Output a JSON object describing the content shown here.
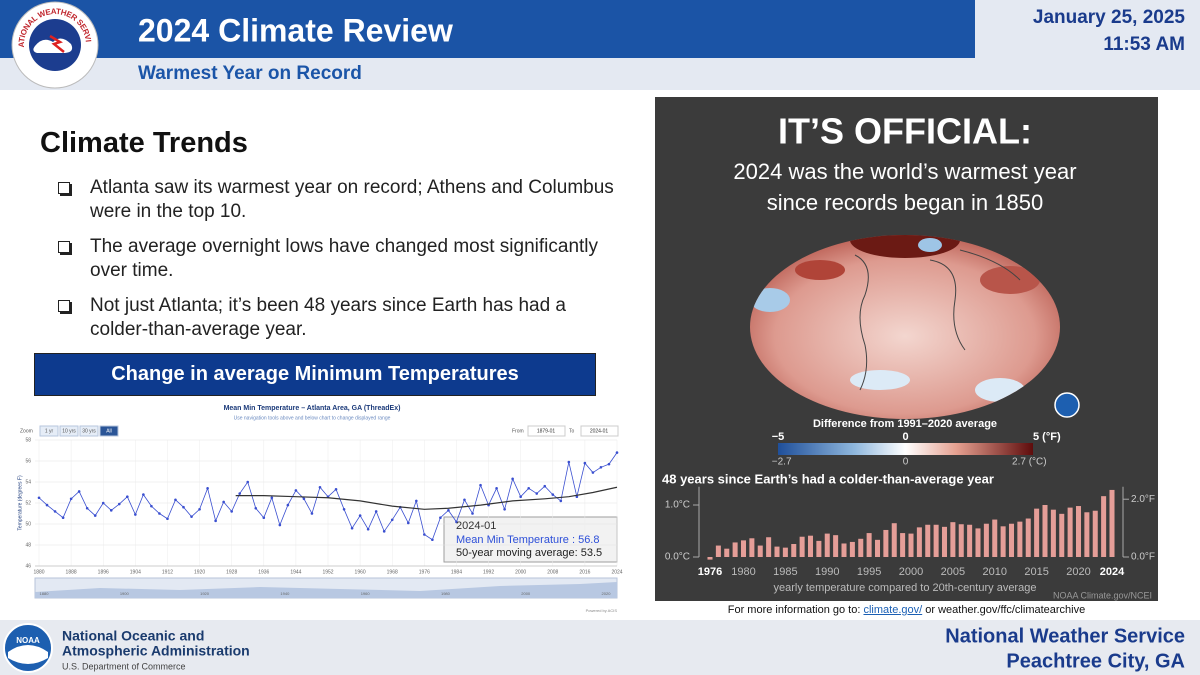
{
  "header": {
    "title": "2024 Climate Review",
    "subtitle": "Warmest Year on Record",
    "date": "January 25, 2025",
    "time": "11:53 AM",
    "logo_text": "NATIONAL WEATHER SERVICE"
  },
  "section": {
    "heading": "Climate Trends",
    "bullets": [
      "Atlanta saw its warmest year on record; Athens and Columbus were in the top 10.",
      "The average overnight lows have changed most significantly over time.",
      "Not just Atlanta; it’s been 48 years since Earth has had a colder-than-average year."
    ],
    "box_label": "Change in average Minimum Temperatures"
  },
  "chart_data": [
    {
      "type": "line",
      "title": "Mean Min Temperature – Atlanta Area, GA (ThreadEx)",
      "subtitle": "Use navigation tools above and below chart to change displayed range",
      "zoom_label": "Zoom",
      "zoom_buttons": [
        "1 yr",
        "10 yrs",
        "30 yrs",
        "All"
      ],
      "from_label": "From",
      "from": "1879-01",
      "to_label": "To",
      "to": "2024-01",
      "y_label": "Temperature (degrees F)",
      "xlim": [
        1879,
        2024
      ],
      "xticks": [
        1880,
        1888,
        1896,
        1904,
        1912,
        1920,
        1928,
        1936,
        1944,
        1952,
        1960,
        1968,
        1976,
        1984,
        1992,
        2000,
        2008,
        2016,
        2024
      ],
      "ylim": [
        46,
        58
      ],
      "yticks": [
        46,
        48,
        50,
        52,
        54,
        56,
        58
      ],
      "grid": true,
      "series": [
        {
          "color": "#3a4fd0",
          "x": [
            1880,
            1882,
            1884,
            1886,
            1888,
            1890,
            1892,
            1894,
            1896,
            1898,
            1900,
            1902,
            1904,
            1906,
            1908,
            1910,
            1912,
            1914,
            1916,
            1918,
            1920,
            1922,
            1924,
            1926,
            1928,
            1930,
            1932,
            1934,
            1936,
            1938,
            1940,
            1942,
            1944,
            1946,
            1948,
            1950,
            1952,
            1954,
            1956,
            1958,
            1960,
            1962,
            1964,
            1966,
            1968,
            1970,
            1972,
            1974,
            1976,
            1978,
            1980,
            1982,
            1984,
            1986,
            1988,
            1990,
            1992,
            1994,
            1996,
            1998,
            2000,
            2002,
            2004,
            2006,
            2008,
            2010,
            2012,
            2014,
            2016,
            2018,
            2020,
            2022,
            2024
          ],
          "values": [
            52.5,
            51.8,
            51.2,
            50.6,
            52.4,
            53.1,
            51.5,
            50.8,
            52.0,
            51.3,
            51.9,
            52.6,
            50.9,
            52.8,
            51.7,
            51.0,
            50.5,
            52.3,
            51.6,
            50.7,
            51.4,
            53.4,
            50.3,
            52.1,
            51.2,
            52.9,
            54.0,
            51.5,
            50.6,
            52.5,
            49.9,
            51.8,
            53.2,
            52.4,
            51.0,
            53.5,
            52.6,
            53.3,
            51.4,
            49.6,
            50.8,
            49.5,
            51.2,
            49.3,
            50.4,
            51.6,
            50.1,
            52.2,
            49.0,
            48.5,
            50.6,
            51.3,
            50.2,
            52.3,
            51.0,
            53.7,
            51.8,
            53.4,
            51.4,
            54.3,
            52.6,
            53.4,
            52.9,
            53.6,
            52.8,
            52.2,
            55.9,
            52.6,
            55.8,
            54.9,
            55.4,
            55.7,
            56.8
          ]
        },
        {
          "color": "#333333",
          "x": [
            1929,
            1936,
            1944,
            1952,
            1960,
            1968,
            1976,
            1982,
            1990,
            1998,
            2006,
            2012,
            2018,
            2024
          ],
          "values": [
            52.7,
            52.7,
            52.6,
            52.5,
            52.2,
            51.7,
            51.4,
            51.5,
            51.8,
            52.2,
            52.4,
            52.6,
            53.0,
            53.5
          ]
        }
      ],
      "tooltip": {
        "date": "2024-01",
        "lines": [
          "Mean Min Temperature : 56.8",
          "50-year moving average: 53.5"
        ]
      },
      "navigator_labels": [
        "1880",
        "1900",
        "1920",
        "1940",
        "1960",
        "1980",
        "2000",
        "2020"
      ],
      "credit": "Powered by ACIS"
    },
    {
      "type": "bar",
      "headline": "IT’S OFFICIAL:",
      "subhead": [
        "2024 was the world’s warmest year",
        "since records began in 1850"
      ],
      "colorbar": {
        "title": "Difference from 1991–2020 average",
        "flim": [
          -5,
          5
        ],
        "fticks": [
          {
            "value": -5,
            "label": "−5"
          },
          0,
          {
            "value": 5,
            "label": "5 (°F)"
          }
        ],
        "clim": [
          -2.78,
          2.78
        ],
        "cticks": [
          {
            "value": -2.7,
            "label": "−2.7"
          },
          0,
          {
            "value": 2.7,
            "label": "2.7 (°C)"
          }
        ]
      },
      "title": "48 years since Earth’s had a colder-than-average year",
      "x_label": "yearly temperature compared to 20th-century average",
      "credit": "NOAA Climate.gov/NCEI",
      "color": "#e59e98",
      "x": [
        1976,
        1977,
        1978,
        1979,
        1980,
        1981,
        1982,
        1983,
        1984,
        1985,
        1986,
        1987,
        1988,
        1989,
        1990,
        1991,
        1992,
        1993,
        1994,
        1995,
        1996,
        1997,
        1998,
        1999,
        2000,
        2001,
        2002,
        2003,
        2004,
        2005,
        2006,
        2007,
        2008,
        2009,
        2010,
        2011,
        2012,
        2013,
        2014,
        2015,
        2016,
        2017,
        2018,
        2019,
        2020,
        2021,
        2022,
        2023,
        2024
      ],
      "values": [
        -0.05,
        0.22,
        0.16,
        0.28,
        0.32,
        0.36,
        0.22,
        0.38,
        0.2,
        0.18,
        0.25,
        0.39,
        0.41,
        0.31,
        0.45,
        0.42,
        0.26,
        0.29,
        0.35,
        0.46,
        0.33,
        0.52,
        0.65,
        0.46,
        0.45,
        0.57,
        0.62,
        0.62,
        0.58,
        0.67,
        0.63,
        0.62,
        0.55,
        0.64,
        0.72,
        0.59,
        0.64,
        0.68,
        0.74,
        0.93,
        1.0,
        0.91,
        0.83,
        0.95,
        0.98,
        0.86,
        0.89,
        1.17,
        1.29
      ],
      "xlim": [
        1976,
        2024
      ],
      "xticks": [
        1976,
        1980,
        1985,
        1990,
        1995,
        2000,
        2005,
        2010,
        2015,
        2020,
        2024
      ],
      "ylim": [
        0,
        1.35
      ],
      "yticks": [
        {
          "value": 0,
          "label": "0.0°C"
        },
        {
          "value": 1,
          "label": "1.0°C"
        }
      ],
      "y2lim": [
        0,
        2.43
      ],
      "y2ticks": [
        {
          "value": 0,
          "label": "0.0°F"
        },
        {
          "value": 2,
          "label": "2.0°F"
        }
      ]
    }
  ],
  "caption": {
    "prefix": "For more information go to: ",
    "link": "climate.gov/",
    "suffix": " or weather.gov/ffc/climatearchive"
  },
  "footer": {
    "noaa_logo_text": "NOAA",
    "agency_lines": [
      "National Oceanic and",
      "Atmospheric Administration"
    ],
    "department": "U.S. Department of Commerce",
    "office_lines": [
      "National Weather Service",
      "Peachtree City, GA"
    ]
  }
}
